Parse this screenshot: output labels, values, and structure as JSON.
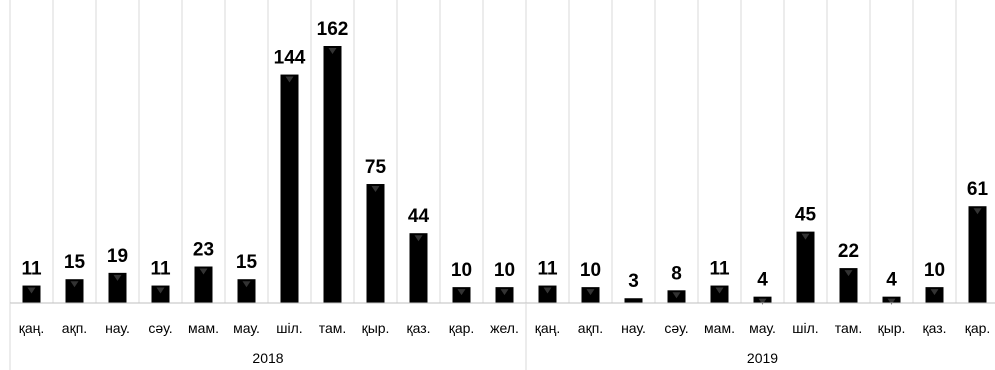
{
  "chart_data": {
    "type": "bar",
    "title": "",
    "xlabel": "",
    "ylabel": "",
    "groups": [
      {
        "label": "2018",
        "start": 0,
        "count": 12
      },
      {
        "label": "2019",
        "start": 12,
        "count": 11
      }
    ],
    "categories": [
      "қаң.",
      "ақп.",
      "нау.",
      "сәу.",
      "мам.",
      "мау.",
      "шіл.",
      "там.",
      "қыр.",
      "қаз.",
      "қар.",
      "жел.",
      "қаң.",
      "ақп.",
      "нау.",
      "сәу.",
      "мам.",
      "мау.",
      "шіл.",
      "там.",
      "қыр.",
      "қаз.",
      "қар."
    ],
    "values": [
      11,
      15,
      19,
      11,
      23,
      15,
      144,
      162,
      75,
      44,
      10,
      10,
      11,
      10,
      3,
      8,
      11,
      4,
      45,
      22,
      4,
      10,
      61
    ],
    "ylim": [
      0,
      162
    ],
    "grid": "vertical",
    "legend": "none",
    "colors": {
      "bar": "#000000",
      "grid": "#d9d9d9",
      "axis": "#bfbfbf"
    }
  }
}
